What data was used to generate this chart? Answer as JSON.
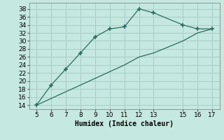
{
  "line1_x": [
    5,
    6,
    7,
    8,
    9,
    10,
    11,
    12,
    13,
    15,
    16,
    17
  ],
  "line1_y": [
    14,
    19,
    23,
    27,
    31,
    33,
    33.5,
    38,
    37,
    34,
    33,
    33
  ],
  "line2_x": [
    5,
    11,
    12,
    13,
    15,
    16,
    17
  ],
  "line2_y": [
    14,
    24,
    26,
    27,
    30,
    32,
    33
  ],
  "line_color": "#2d6b60",
  "bg_color": "#c5e8e0",
  "grid_color": "#a8cec8",
  "xlabel": "Humidex (Indice chaleur)",
  "xlim": [
    4.5,
    17.5
  ],
  "ylim": [
    13,
    39.5
  ],
  "xticks": [
    5,
    6,
    7,
    8,
    9,
    10,
    11,
    12,
    13,
    15,
    16,
    17
  ],
  "yticks": [
    14,
    16,
    18,
    20,
    22,
    24,
    26,
    28,
    30,
    32,
    34,
    36,
    38
  ],
  "marker": "+",
  "markersize": 5,
  "markeredgewidth": 1.2,
  "linewidth": 0.9,
  "xlabel_fontsize": 7,
  "tick_fontsize": 6.5
}
